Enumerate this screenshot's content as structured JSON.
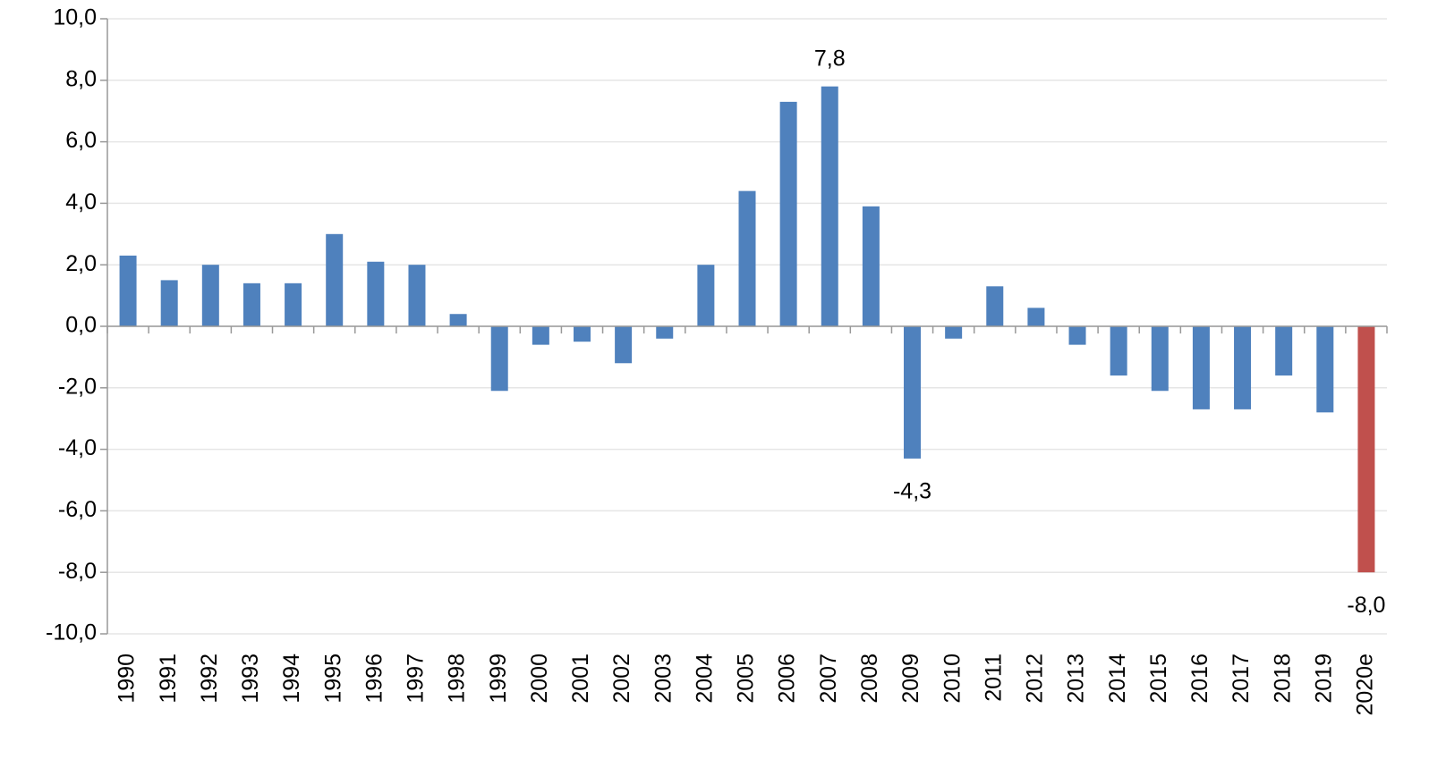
{
  "chart_data": {
    "type": "bar",
    "categories": [
      "1990",
      "1991",
      "1992",
      "1993",
      "1994",
      "1995",
      "1996",
      "1997",
      "1998",
      "1999",
      "2000",
      "2001",
      "2002",
      "2003",
      "2004",
      "2005",
      "2006",
      "2007",
      "2008",
      "2009",
      "2010",
      "2011",
      "2012",
      "2013",
      "2014",
      "2015",
      "2016",
      "2017",
      "2018",
      "2019",
      "2020e"
    ],
    "values": [
      2.3,
      1.5,
      2.0,
      1.4,
      1.4,
      3.0,
      2.1,
      2.0,
      0.4,
      -2.1,
      -0.6,
      -0.5,
      -1.2,
      -0.4,
      2.0,
      4.4,
      7.3,
      7.8,
      3.9,
      -4.3,
      -0.4,
      1.3,
      0.6,
      -0.6,
      -1.6,
      -2.1,
      -2.7,
      -2.7,
      -1.6,
      -2.8,
      -8.0
    ],
    "value_labels": [
      null,
      null,
      null,
      null,
      null,
      null,
      null,
      null,
      null,
      null,
      null,
      null,
      null,
      null,
      null,
      null,
      null,
      "7,8",
      null,
      "-4,3",
      null,
      null,
      null,
      null,
      null,
      null,
      null,
      null,
      null,
      null,
      "-8,0"
    ],
    "colors": [
      "#4f81bd",
      "#4f81bd",
      "#4f81bd",
      "#4f81bd",
      "#4f81bd",
      "#4f81bd",
      "#4f81bd",
      "#4f81bd",
      "#4f81bd",
      "#4f81bd",
      "#4f81bd",
      "#4f81bd",
      "#4f81bd",
      "#4f81bd",
      "#4f81bd",
      "#4f81bd",
      "#4f81bd",
      "#4f81bd",
      "#4f81bd",
      "#4f81bd",
      "#4f81bd",
      "#4f81bd",
      "#4f81bd",
      "#4f81bd",
      "#4f81bd",
      "#4f81bd",
      "#4f81bd",
      "#4f81bd",
      "#4f81bd",
      "#4f81bd",
      "#c0504d"
    ],
    "ylim": [
      -10,
      10
    ],
    "yticks": [
      {
        "value": -10,
        "label": "-10,0"
      },
      {
        "value": -8,
        "label": "-8,0"
      },
      {
        "value": -6,
        "label": "-6,0"
      },
      {
        "value": -4,
        "label": "-4,0"
      },
      {
        "value": -2,
        "label": "-2,0"
      },
      {
        "value": 0,
        "label": "0,0"
      },
      {
        "value": 2,
        "label": "2,0"
      },
      {
        "value": 4,
        "label": "4,0"
      },
      {
        "value": 6,
        "label": "6,0"
      },
      {
        "value": 8,
        "label": "8,0"
      },
      {
        "value": 10,
        "label": "10,0"
      }
    ],
    "grid": true
  }
}
